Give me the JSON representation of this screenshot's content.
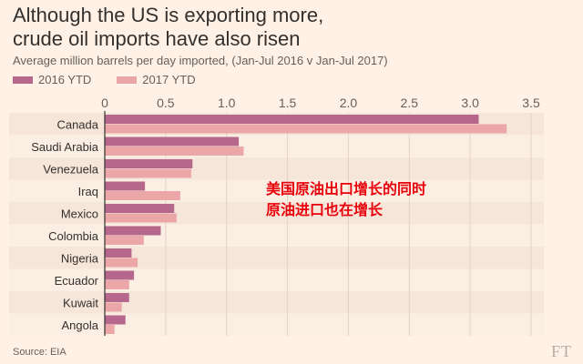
{
  "title_line1": "Although the US is exporting more,",
  "title_line2": "crude oil imports have also risen",
  "subtitle": "Average million barrels per day imported, (Jan-Jul 2016 v Jan-Jul 2017)",
  "source": "Source: EIA",
  "logo": "FT",
  "annotation_line1": "美国原油出口增长的同时",
  "annotation_line2": "原油进口也在增长",
  "colors": {
    "series_2016": "#b5678c",
    "series_2017": "#eba6a8",
    "annotation": "#e8000b",
    "background": "#fff1e5"
  },
  "chart_data": {
    "type": "bar",
    "orientation": "horizontal",
    "categories": [
      "Canada",
      "Saudi Arabia",
      "Venezuela",
      "Iraq",
      "Mexico",
      "Colombia",
      "Nigeria",
      "Ecuador",
      "Kuwait",
      "Angola"
    ],
    "series": [
      {
        "name": "2016 YTD",
        "values": [
          3.07,
          1.1,
          0.72,
          0.33,
          0.57,
          0.46,
          0.22,
          0.24,
          0.2,
          0.17
        ]
      },
      {
        "name": "2017 YTD",
        "values": [
          3.3,
          1.14,
          0.71,
          0.62,
          0.59,
          0.32,
          0.27,
          0.2,
          0.14,
          0.08
        ]
      }
    ],
    "xlim": [
      0,
      3.5
    ],
    "xticks": [
      "0",
      "0.5",
      "1.0",
      "1.5",
      "2.0",
      "2.5",
      "3.0",
      "3.5"
    ],
    "xtick_values": [
      0,
      0.5,
      1.0,
      1.5,
      2.0,
      2.5,
      3.0,
      3.5
    ],
    "grid": true,
    "legend": "top-left"
  }
}
